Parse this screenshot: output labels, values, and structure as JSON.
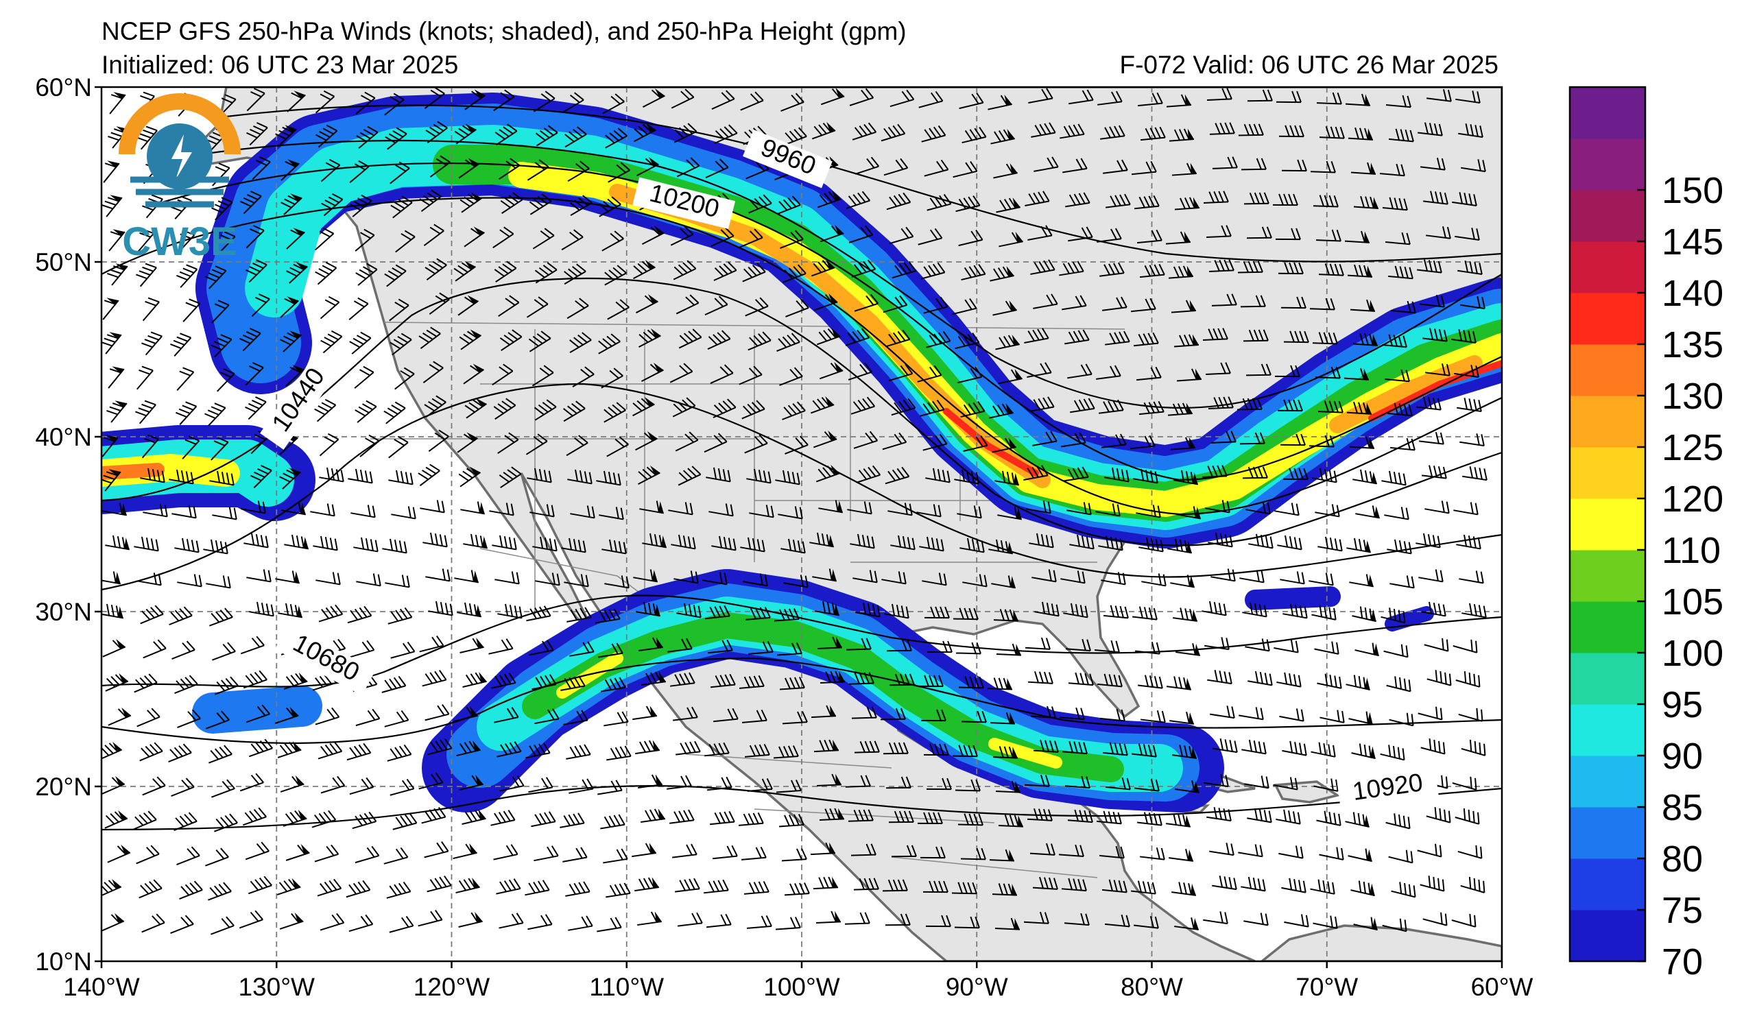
{
  "header": {
    "title": "NCEP GFS 250-hPa Winds (knots; shaded), and 250-hPa Height (gpm)",
    "init_line": "Initialized: 06 UTC 23 Mar 2025",
    "valid_line": "F-072  Valid: 06 UTC 26 Mar 2025"
  },
  "logo": {
    "text": "CW3E",
    "icon": "cw3e-sun-lightning-logo-icon"
  },
  "axes": {
    "lon_ticks": [
      "140°W",
      "130°W",
      "120°W",
      "110°W",
      "100°W",
      "90°W",
      "80°W",
      "70°W",
      "60°W"
    ],
    "lat_ticks": [
      "60°N",
      "50°N",
      "40°N",
      "30°N",
      "20°N",
      "10°N"
    ],
    "lon_range": [
      -140,
      -60
    ],
    "lat_range": [
      10,
      60
    ],
    "grid": "dashed"
  },
  "contour_labels": [
    "9960",
    "10200",
    "10440",
    "10680",
    "10920"
  ],
  "colorbar": {
    "ticks": [
      "70",
      "75",
      "80",
      "85",
      "90",
      "95",
      "100",
      "105",
      "110",
      "120",
      "125",
      "130",
      "135",
      "140",
      "145",
      "150"
    ],
    "colors": [
      "#1a1ac8",
      "#1f3fe6",
      "#1e78f0",
      "#1fbaf0",
      "#1ee8e0",
      "#22d8a0",
      "#1fbf2a",
      "#6ecf1e",
      "#ffff22",
      "#ffd21e",
      "#ffaa1e",
      "#ff7a1e",
      "#ff2a1a",
      "#d01a3c",
      "#a01a5a",
      "#8a1e7e",
      "#6e1e8c"
    ]
  },
  "colors": {
    "land": "#e4e4e4",
    "coast": "#6e6e6e",
    "contour": "#000000"
  }
}
